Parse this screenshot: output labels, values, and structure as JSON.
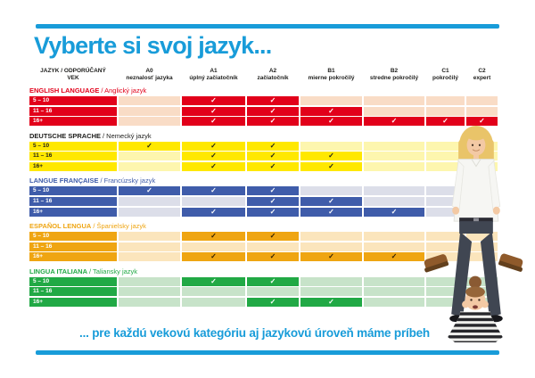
{
  "colors": {
    "accent": "#189cd9"
  },
  "page": {
    "title": "Vyberte si svoj jazyk...",
    "footer": "... pre každú vekovú kategóriu aj jazykovú úroveň máme príbeh"
  },
  "table": {
    "check_glyph": "✓",
    "header": {
      "col_language_line1": "JAZYK / ODPORÚČANÝ",
      "col_language_line2": "VEK"
    },
    "levels": [
      {
        "code": "A0",
        "label": "neznalosť jazyka"
      },
      {
        "code": "A1",
        "label": "úplný začiatočník"
      },
      {
        "code": "A2",
        "label": "začiatočník"
      },
      {
        "code": "B1",
        "label": "mierne pokročilý"
      },
      {
        "code": "B2",
        "label": "stredne pokročilý"
      },
      {
        "code": "C1",
        "label": "pokročilý"
      },
      {
        "code": "C2",
        "label": "expert"
      }
    ],
    "sections": [
      {
        "id": "english",
        "title_main": "ENGLISH LANGUAGE",
        "title_sub": "/ Anglický jazyk",
        "colors": {
          "title": "#e2001a",
          "solid": "#e2001a",
          "pale": "#f9dcc6",
          "check": "#ffffff",
          "age_text": "#ffffff"
        },
        "rows": [
          {
            "age": "5 – 10",
            "checks": [
              "A1",
              "A2"
            ]
          },
          {
            "age": "11 – 16",
            "checks": [
              "A1",
              "A2",
              "B1"
            ]
          },
          {
            "age": "16+",
            "checks": [
              "A1",
              "A2",
              "B1",
              "B2",
              "C1",
              "C2"
            ]
          }
        ]
      },
      {
        "id": "german",
        "title_main": "DEUTSCHE SPRACHE",
        "title_sub": "/ Nemecký jazyk",
        "colors": {
          "title": "#1d1d1b",
          "solid": "#ffe800",
          "pale": "#fdf6ae",
          "check": "#1d1d1b",
          "age_text": "#1d1d1b"
        },
        "rows": [
          {
            "age": "5 – 10",
            "checks": [
              "A0",
              "A1",
              "A2"
            ]
          },
          {
            "age": "11 – 16",
            "checks": [
              "A1",
              "A2",
              "B1"
            ]
          },
          {
            "age": "16+",
            "checks": [
              "A1",
              "A2",
              "B1"
            ]
          }
        ]
      },
      {
        "id": "french",
        "title_main": "LANGUE FRANÇAISE",
        "title_sub": "/ Francúzsky jazyk",
        "colors": {
          "title": "#3f5caa",
          "solid": "#3f5caa",
          "pale": "#dcdee9",
          "check": "#ffffff",
          "age_text": "#ffffff"
        },
        "rows": [
          {
            "age": "5 – 10",
            "checks": [
              "A0",
              "A1",
              "A2"
            ]
          },
          {
            "age": "11 – 16",
            "checks": [
              "A2",
              "B1"
            ]
          },
          {
            "age": "16+",
            "checks": [
              "A1",
              "A2",
              "B1",
              "B2"
            ]
          }
        ]
      },
      {
        "id": "spanish",
        "title_main": "ESPAÑOL LENGUA",
        "title_sub": "/ Španielsky jazyk",
        "colors": {
          "title": "#efa512",
          "solid": "#efa512",
          "pale": "#fbe5bc",
          "check": "#2e1d02",
          "age_text": "#ffffff"
        },
        "rows": [
          {
            "age": "5 – 10",
            "checks": [
              "A1",
              "A2"
            ]
          },
          {
            "age": "11 – 16",
            "checks": []
          },
          {
            "age": "16+",
            "checks": [
              "A1",
              "A2",
              "B1",
              "B2"
            ]
          }
        ]
      },
      {
        "id": "italian",
        "title_main": "LINGUA ITALIANA",
        "title_sub": "/ Taliansky jazyk",
        "colors": {
          "title": "#21a945",
          "solid": "#21a945",
          "pale": "#c7e3c9",
          "check": "#ffffff",
          "age_text": "#ffffff"
        },
        "rows": [
          {
            "age": "5 – 10",
            "checks": [
              "A1",
              "A2"
            ]
          },
          {
            "age": "11 – 16",
            "checks": []
          },
          {
            "age": "16+",
            "checks": [
              "A2",
              "B1"
            ]
          }
        ]
      }
    ]
  },
  "illustration": "blonde-woman-standing-with-upside-down-girl-photo"
}
